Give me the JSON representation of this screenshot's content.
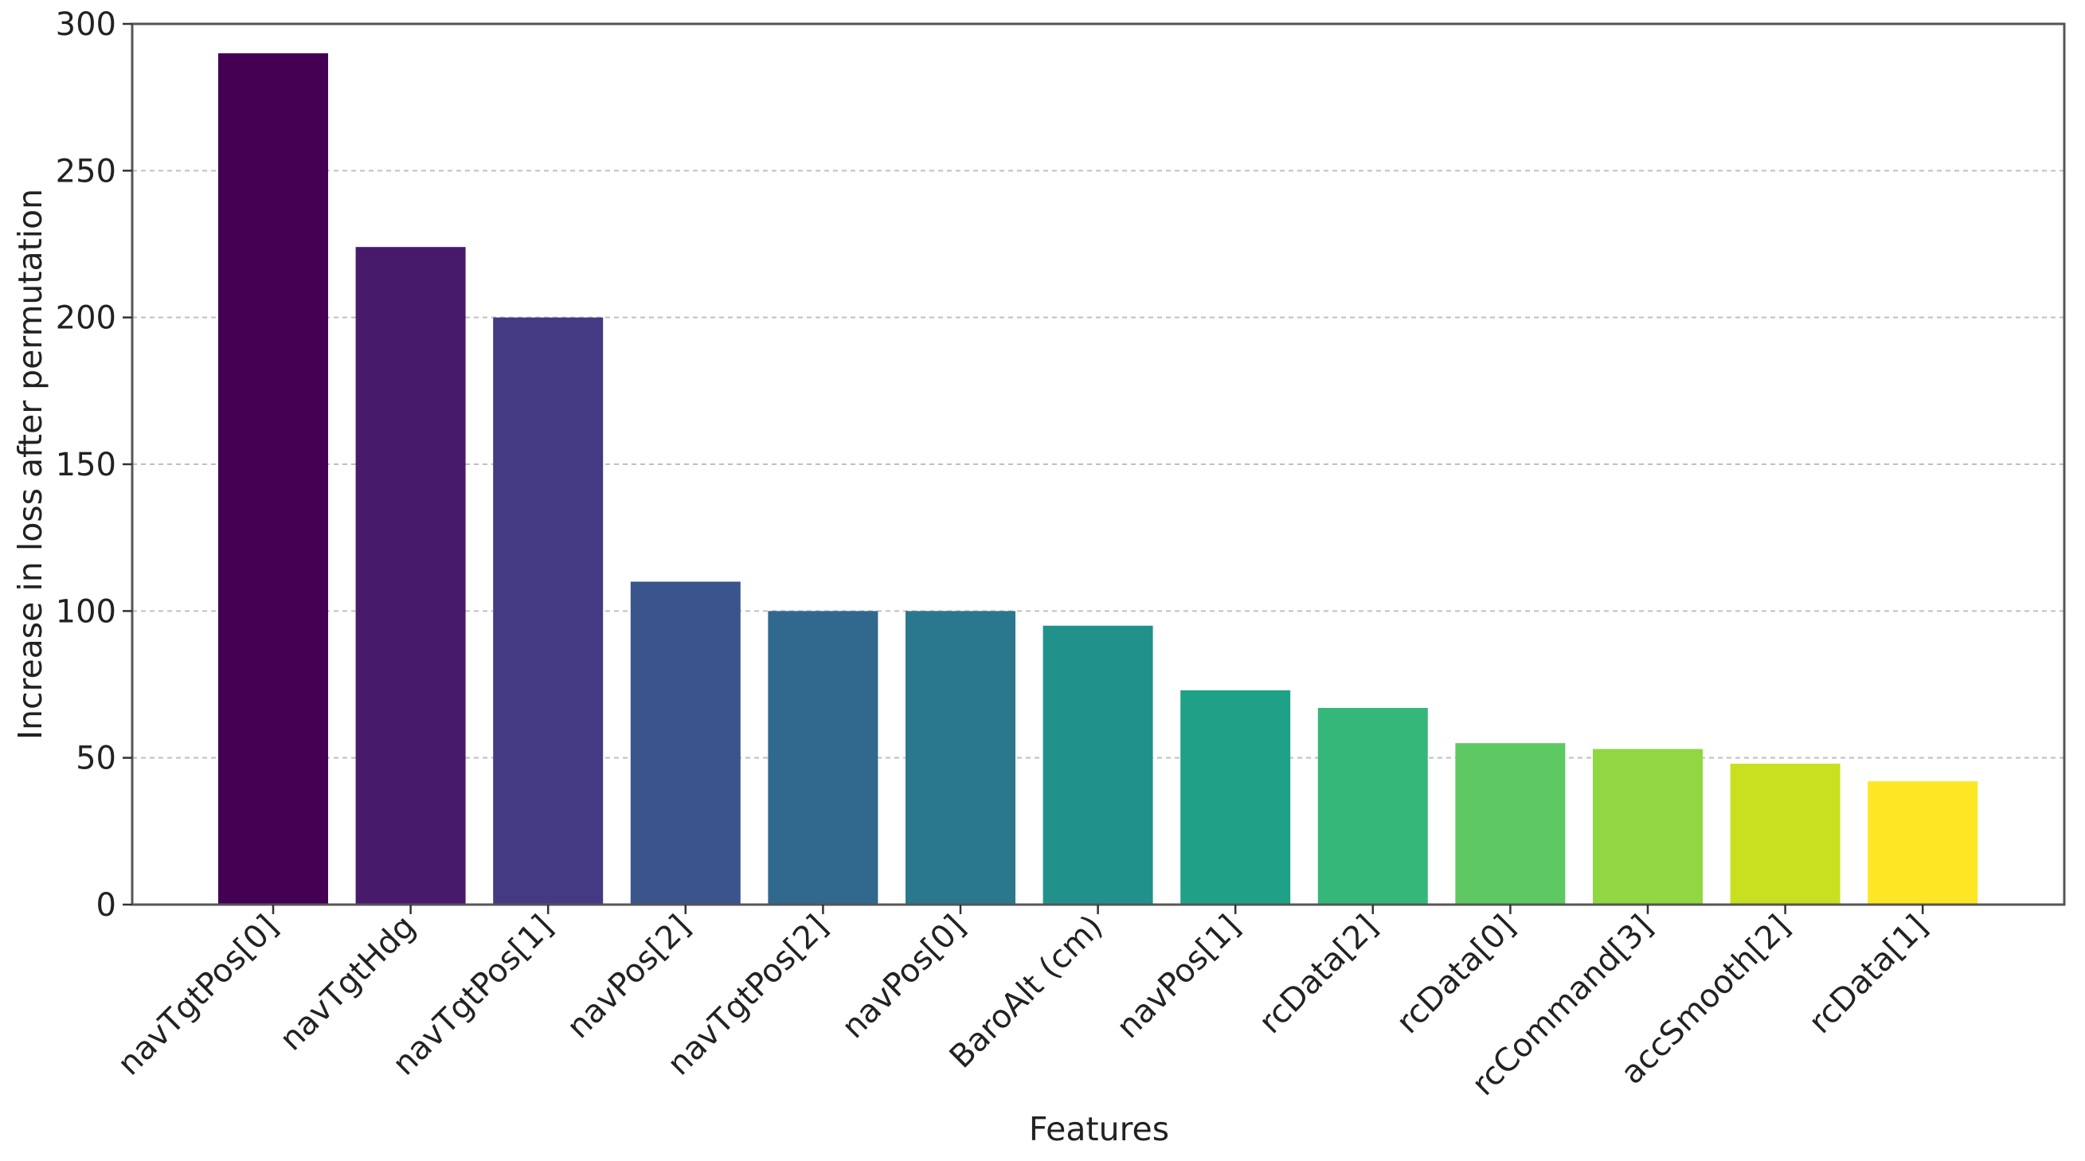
{
  "chart_data": {
    "type": "bar",
    "title": "",
    "xlabel": "Features",
    "ylabel": "Increase in loss after permutation",
    "categories": [
      "navTgtPos[0]",
      "navTgtHdg",
      "navTgtPos[1]",
      "navPos[2]",
      "navTgtPos[2]",
      "navPos[0]",
      "BaroAlt (cm)",
      "navPos[1]",
      "rcData[2]",
      "rcData[0]",
      "rcCommand[3]",
      "accSmooth[2]",
      "rcData[1]"
    ],
    "values": [
      290,
      224,
      200,
      110,
      100,
      100,
      95,
      73,
      67,
      55,
      53,
      48,
      42
    ],
    "colors": [
      "#440154",
      "#481a6c",
      "#433a83",
      "#3a548c",
      "#31688e",
      "#2a788e",
      "#21918c",
      "#1fa187",
      "#35b779",
      "#5ec962",
      "#90d743",
      "#c8e020",
      "#fde725"
    ],
    "ylim": [
      0,
      300
    ],
    "yticks": [
      0,
      50,
      100,
      150,
      200,
      250,
      300
    ],
    "grid": {
      "axis": "y",
      "style": "dashed",
      "color": "#c0c0c0"
    },
    "legend": "none"
  }
}
